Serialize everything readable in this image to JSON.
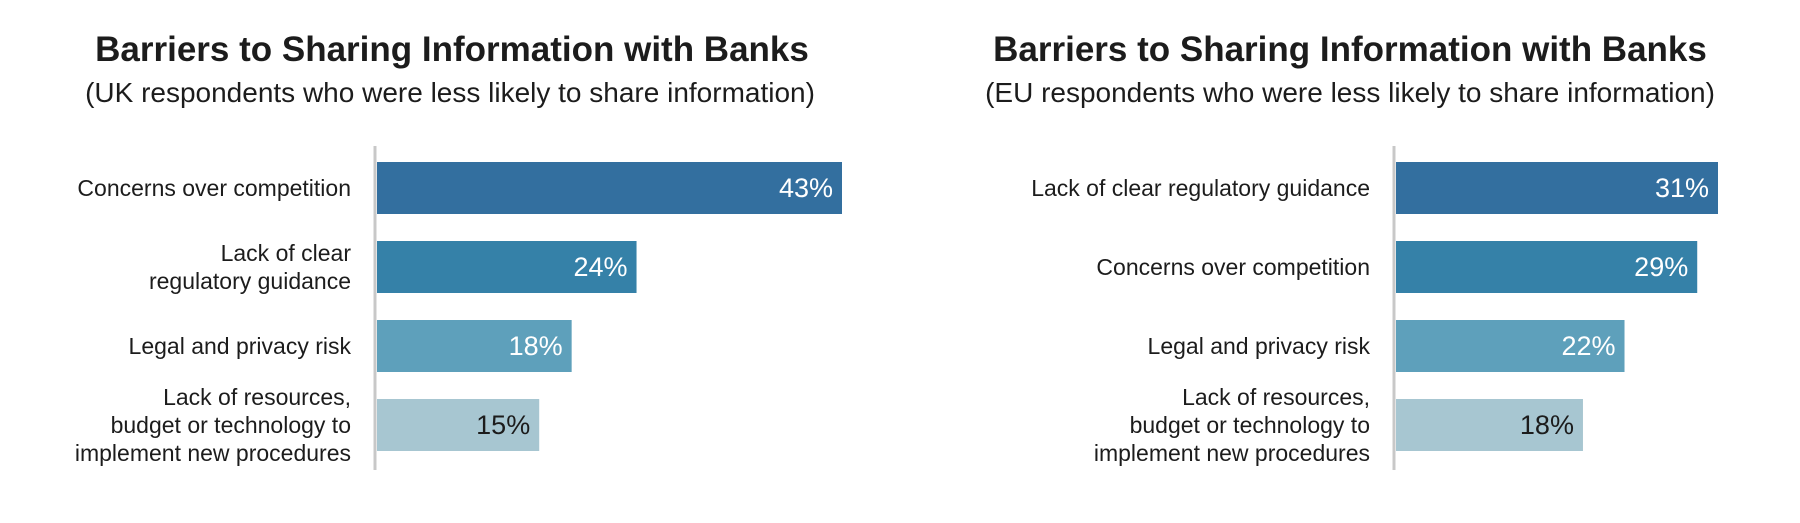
{
  "chart_data": [
    {
      "type": "bar",
      "orientation": "horizontal",
      "title": "Barriers to Sharing Information with Banks",
      "subtitle": "(UK respondents who were less likely to share information)",
      "categories": [
        "Concerns over competition",
        "Lack of clear\nregulatory guidance",
        "Legal and privacy risk",
        "Lack of resources,\nbudget or technology to\nimplement new procedures"
      ],
      "values": [
        43,
        24,
        18,
        15
      ],
      "value_labels": [
        "43%",
        "24%",
        "18%",
        "15%"
      ],
      "colors": [
        "#336f9f",
        "#3581a8",
        "#5ea0bb",
        "#a7c6d1"
      ],
      "label_colors": [
        "#ffffff",
        "#ffffff",
        "#ffffff",
        "#1c1c1c"
      ],
      "xlim": [
        0,
        43
      ],
      "grid": false
    },
    {
      "type": "bar",
      "orientation": "horizontal",
      "title": "Barriers to Sharing Information with Banks",
      "subtitle": "(EU respondents who were less likely to share information)",
      "categories": [
        "Lack of clear regulatory guidance",
        "Concerns over competition",
        "Legal and privacy risk",
        "Lack of resources,\nbudget or technology to\nimplement new procedures"
      ],
      "values": [
        31,
        29,
        22,
        18
      ],
      "value_labels": [
        "31%",
        "29%",
        "22%",
        "18%"
      ],
      "colors": [
        "#336f9f",
        "#3581a8",
        "#5ea0bb",
        "#a7c6d1"
      ],
      "label_colors": [
        "#ffffff",
        "#ffffff",
        "#ffffff",
        "#1c1c1c"
      ],
      "xlim": [
        0,
        31
      ],
      "grid": false
    }
  ]
}
